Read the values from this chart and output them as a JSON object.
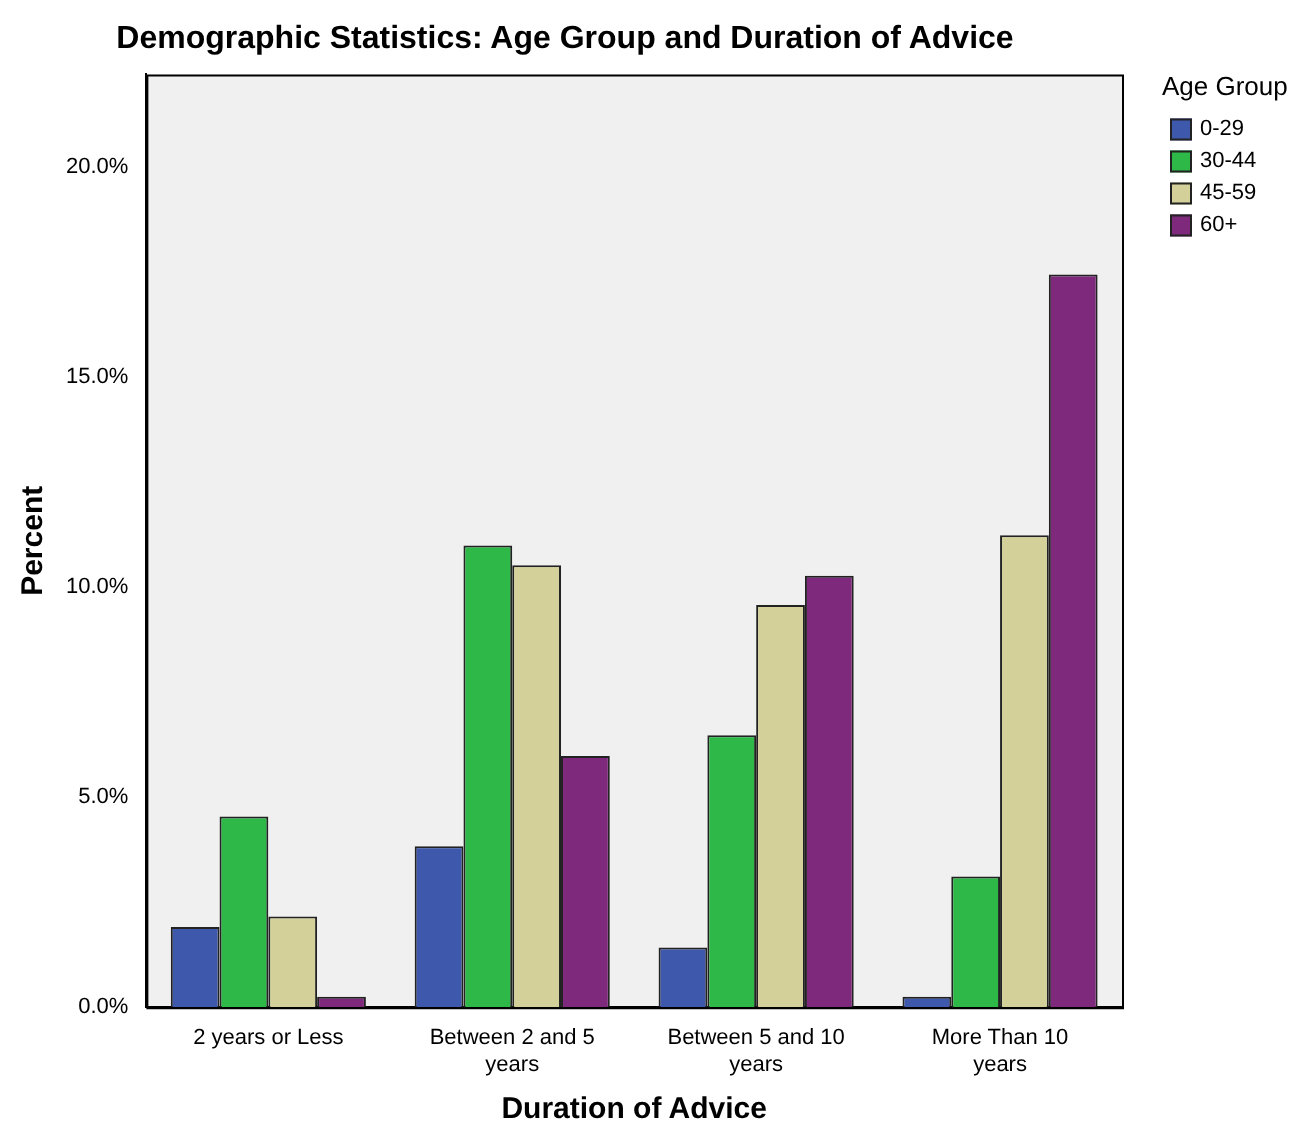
{
  "chart_data": {
    "type": "bar",
    "title": "Demographic Statistics: Age Group and Duration of Advice",
    "xlabel": "Duration of Advice",
    "ylabel": "Percent",
    "legend_title": "Age Group",
    "legend": "top right",
    "grid": false,
    "categories": [
      "2 years or Less",
      "Between 2 and 5 years",
      "Between 5 and 10 years",
      "More Than 10 years"
    ],
    "series": [
      {
        "name": "0-29",
        "color": "#3e58ac",
        "values": [
          1.91,
          3.83,
          1.42,
          0.25
        ]
      },
      {
        "name": "30-44",
        "color": "#2eb848",
        "values": [
          4.54,
          10.99,
          6.47,
          3.11
        ]
      },
      {
        "name": "45-59",
        "color": "#d4d09a",
        "values": [
          2.16,
          10.52,
          9.57,
          11.23
        ]
      },
      {
        "name": "60+",
        "color": "#7e297c",
        "values": [
          0.25,
          5.98,
          10.27,
          17.44
        ]
      }
    ],
    "ylim": [
      0,
      22.2
    ],
    "yticks": [
      {
        "value": 0,
        "label": "0.0%"
      },
      {
        "value": 5,
        "label": "5.0%"
      },
      {
        "value": 10,
        "label": "10.0%"
      },
      {
        "value": 15,
        "label": "15.0%"
      },
      {
        "value": 20,
        "label": "20.0%"
      }
    ]
  }
}
